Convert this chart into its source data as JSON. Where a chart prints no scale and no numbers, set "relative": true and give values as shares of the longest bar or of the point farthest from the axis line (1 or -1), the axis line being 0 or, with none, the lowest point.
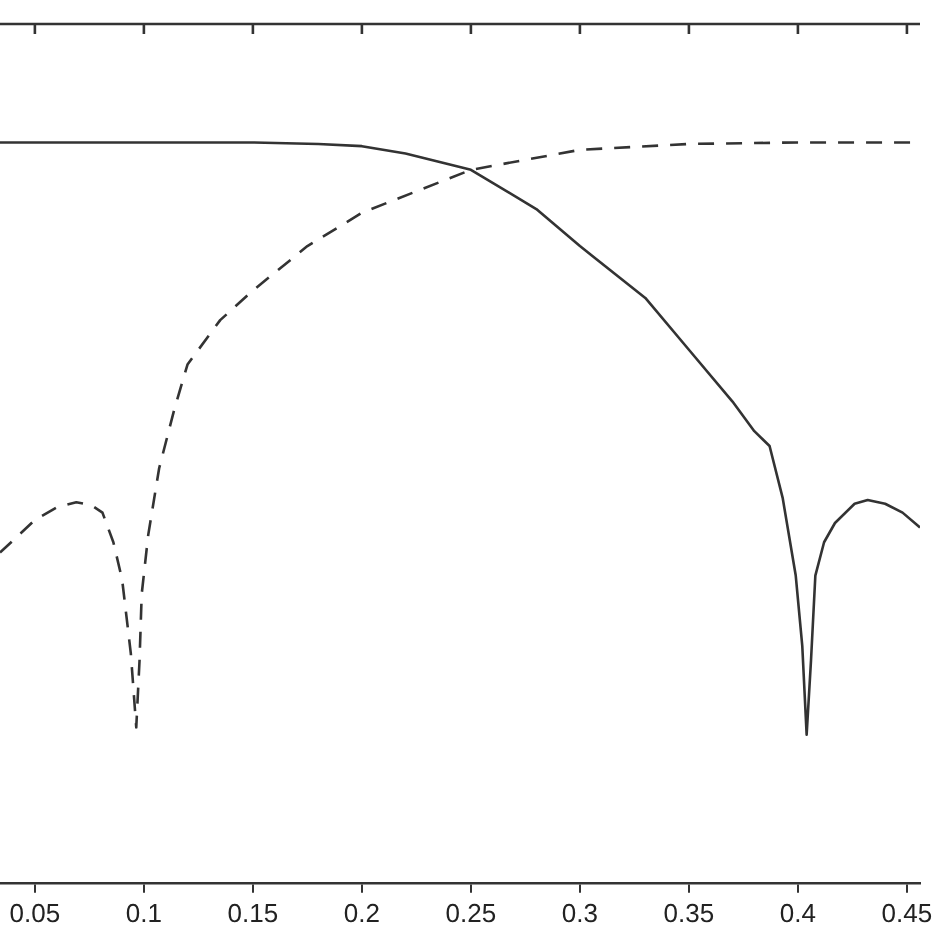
{
  "chart_data": {
    "type": "line",
    "relative": true,
    "xlim": [
      0.034,
      0.456
    ],
    "xticks": [
      0.05,
      0.1,
      0.15,
      0.2,
      0.25,
      0.3,
      0.35,
      0.4,
      0.45
    ],
    "grid": false,
    "legend": false,
    "marker": "none",
    "series": [
      {
        "color": "#333333",
        "line_style": "solid",
        "x": [
          0.034,
          0.1,
          0.15,
          0.18,
          0.2,
          0.22,
          0.25,
          0.28,
          0.3,
          0.33,
          0.35,
          0.37,
          0.38,
          0.387,
          0.393,
          0.399,
          0.402,
          0.404,
          0.406,
          0.408,
          0.412,
          0.417,
          0.426,
          0.432,
          0.44,
          0.448,
          0.456
        ],
        "values": [
          1,
          1,
          1,
          0.998,
          0.995,
          0.985,
          0.963,
          0.91,
          0.86,
          0.79,
          0.72,
          0.65,
          0.61,
          0.59,
          0.52,
          0.415,
          0.32,
          0.2,
          0.3,
          0.415,
          0.46,
          0.486,
          0.512,
          0.517,
          0.512,
          0.5,
          0.48
        ]
      },
      {
        "color": "#333333",
        "line_style": "dashed",
        "x": [
          0.034,
          0.05,
          0.06,
          0.069,
          0.076,
          0.081,
          0.086,
          0.09,
          0.094,
          0.0965,
          0.098,
          0.099,
          0.102,
          0.107,
          0.114,
          0.12,
          0.135,
          0.15,
          0.175,
          0.2,
          0.25,
          0.3,
          0.35,
          0.4,
          0.456
        ],
        "values": [
          0.446,
          0.49,
          0.507,
          0.514,
          0.51,
          0.5,
          0.46,
          0.41,
          0.31,
          0.21,
          0.3,
          0.39,
          0.47,
          0.56,
          0.64,
          0.7,
          0.76,
          0.8,
          0.86,
          0.905,
          0.963,
          0.99,
          0.998,
          1,
          1
        ]
      }
    ]
  }
}
